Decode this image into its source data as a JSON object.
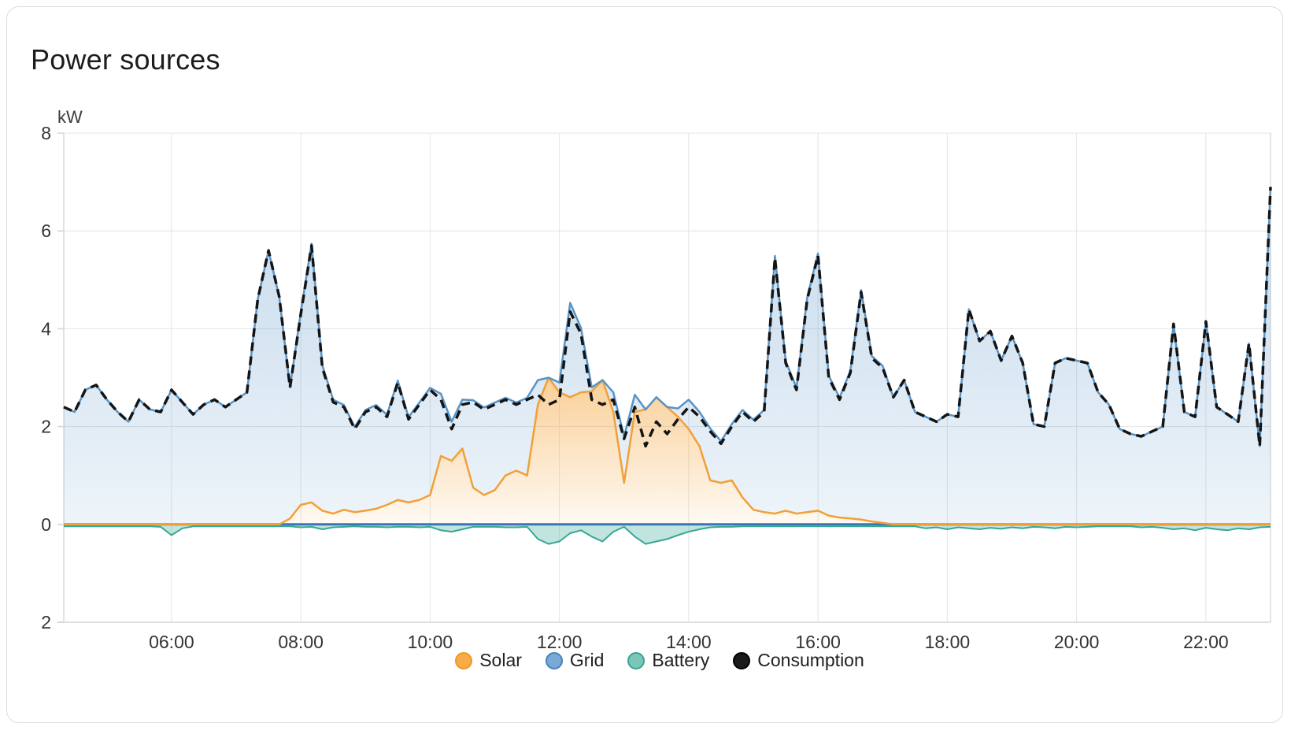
{
  "card": {
    "title": "Power sources"
  },
  "chart_data": {
    "type": "area",
    "title": "Power sources",
    "unit": "kW",
    "grid": true,
    "legend_position": "bottom",
    "x_axis": {
      "start_minute": 260,
      "step_minutes": 10,
      "count": 113,
      "range_hours": [
        4.3333,
        23.0
      ],
      "ticks": [
        {
          "hour": 6,
          "label": "06:00"
        },
        {
          "hour": 8,
          "label": "08:00"
        },
        {
          "hour": 10,
          "label": "10:00"
        },
        {
          "hour": 12,
          "label": "12:00"
        },
        {
          "hour": 14,
          "label": "14:00"
        },
        {
          "hour": 16,
          "label": "16:00"
        },
        {
          "hour": 18,
          "label": "18:00"
        },
        {
          "hour": 20,
          "label": "20:00"
        },
        {
          "hour": 22,
          "label": "22:00"
        }
      ]
    },
    "y_axis": {
      "min": -2,
      "max": 8,
      "label": "kW",
      "ticks": [
        {
          "value": 8,
          "label": "8"
        },
        {
          "value": 6,
          "label": "6"
        },
        {
          "value": 4,
          "label": "4"
        },
        {
          "value": 2,
          "label": "2"
        },
        {
          "value": 0,
          "label": "0"
        },
        {
          "value": -2,
          "label": "2"
        }
      ]
    },
    "zero_line_color": "#3a76b5",
    "grid_color": "#e4e4e4",
    "axis_color": "#d6d6d6",
    "tick_text_color": "#333333",
    "series": [
      {
        "name": "Solar",
        "role": "solar",
        "line_color": "#f1a038",
        "line_width": 2.5,
        "area_top": "rgba(243,160,48,0.50)",
        "area_bottom": "rgba(243,160,48,0.06)",
        "marker_fill": "#fbab45",
        "marker_stroke": "#ec9a22",
        "values": [
          0,
          0,
          0,
          0,
          0,
          0,
          0,
          0,
          0,
          0,
          0,
          0,
          0,
          0,
          0,
          0,
          0,
          0,
          0,
          0,
          0,
          0.12,
          0.4,
          0.45,
          0.28,
          0.22,
          0.3,
          0.25,
          0.28,
          0.32,
          0.4,
          0.5,
          0.45,
          0.5,
          0.6,
          1.4,
          1.3,
          1.55,
          0.75,
          0.6,
          0.7,
          1.0,
          1.1,
          1.0,
          2.45,
          3.0,
          2.7,
          2.6,
          2.7,
          2.72,
          2.95,
          2.3,
          0.85,
          2.3,
          2.35,
          2.6,
          2.4,
          2.2,
          1.95,
          1.6,
          0.9,
          0.85,
          0.9,
          0.55,
          0.3,
          0.25,
          0.22,
          0.28,
          0.22,
          0.25,
          0.28,
          0.18,
          0.14,
          0.12,
          0.1,
          0.06,
          0.03,
          0,
          0,
          0,
          0,
          0,
          0,
          0,
          0,
          0,
          0,
          0,
          0,
          0,
          0,
          0,
          0,
          0,
          0,
          0,
          0,
          0,
          0,
          0,
          0,
          0,
          0,
          0,
          0,
          0,
          0,
          0,
          0,
          0,
          0,
          0,
          0
        ]
      },
      {
        "name": "Grid",
        "role": "grid",
        "line_color": "#5894c8",
        "line_width": 2.5,
        "area_top": "rgba(88,148,200,0.35)",
        "area_bottom": "rgba(88,148,200,0.10)",
        "marker_fill": "#79a9d6",
        "marker_stroke": "#4a82b8",
        "values": [
          2.4,
          2.3,
          2.75,
          2.85,
          2.55,
          2.3,
          2.1,
          2.55,
          2.35,
          2.3,
          2.75,
          2.5,
          2.25,
          2.45,
          2.55,
          2.4,
          2.55,
          2.7,
          4.6,
          5.6,
          4.65,
          2.68,
          3.94,
          5.29,
          2.97,
          2.33,
          2.14,
          1.74,
          2.06,
          2.12,
          1.84,
          2.44,
          1.74,
          1.99,
          2.19,
          1.27,
          0.8,
          1.0,
          1.79,
          1.79,
          1.79,
          1.59,
          1.39,
          1.59,
          0.5,
          0.0,
          0.2,
          1.93,
          1.32,
          0.08,
          0.0,
          0.4,
          0.95,
          0.35,
          0.0,
          0.0,
          0.0,
          0.17,
          0.6,
          0.7,
          1.06,
          0.85,
          1.15,
          1.79,
          1.84,
          2.09,
          5.27,
          3.06,
          2.57,
          4.39,
          5.26,
          2.86,
          2.45,
          3.02,
          4.69,
          3.38,
          3.21,
          2.6,
          2.95,
          2.3,
          2.2,
          2.1,
          2.25,
          2.2,
          4.4,
          3.75,
          3.95,
          3.35,
          3.85,
          3.3,
          2.05,
          2.0,
          3.3,
          3.4,
          3.35,
          3.3,
          2.7,
          2.45,
          1.95,
          1.85,
          1.8,
          1.9,
          2.0,
          4.1,
          2.3,
          2.2,
          4.15,
          2.4,
          2.25,
          2.1,
          3.7,
          1.6,
          6.9
        ]
      },
      {
        "name": "Battery",
        "role": "battery",
        "line_color": "#36a795",
        "line_width": 2,
        "area_top": "rgba(64,170,152,0.32)",
        "area_bottom": "rgba(64,170,152,0.32)",
        "marker_fill": "#79c7b9",
        "marker_stroke": "#3fa18f",
        "values": [
          -0.04,
          -0.04,
          -0.04,
          -0.04,
          -0.04,
          -0.04,
          -0.04,
          -0.04,
          -0.04,
          -0.05,
          -0.22,
          -0.08,
          -0.04,
          -0.04,
          -0.04,
          -0.04,
          -0.04,
          -0.04,
          -0.04,
          -0.04,
          -0.04,
          -0.04,
          -0.06,
          -0.05,
          -0.1,
          -0.06,
          -0.05,
          -0.04,
          -0.05,
          -0.05,
          -0.06,
          -0.05,
          -0.05,
          -0.06,
          -0.05,
          -0.12,
          -0.15,
          -0.1,
          -0.05,
          -0.05,
          -0.05,
          -0.06,
          -0.06,
          -0.05,
          -0.3,
          -0.4,
          -0.35,
          -0.18,
          -0.12,
          -0.25,
          -0.35,
          -0.15,
          -0.05,
          -0.25,
          -0.4,
          -0.35,
          -0.3,
          -0.22,
          -0.15,
          -0.1,
          -0.06,
          -0.05,
          -0.05,
          -0.04,
          -0.04,
          -0.04,
          -0.04,
          -0.04,
          -0.04,
          -0.04,
          -0.04,
          -0.04,
          -0.04,
          -0.04,
          -0.04,
          -0.04,
          -0.04,
          -0.04,
          -0.04,
          -0.04,
          -0.08,
          -0.06,
          -0.1,
          -0.06,
          -0.08,
          -0.1,
          -0.07,
          -0.09,
          -0.06,
          -0.08,
          -0.05,
          -0.06,
          -0.08,
          -0.05,
          -0.06,
          -0.05,
          -0.04,
          -0.04,
          -0.04,
          -0.04,
          -0.06,
          -0.05,
          -0.07,
          -0.1,
          -0.08,
          -0.12,
          -0.07,
          -0.1,
          -0.12,
          -0.08,
          -0.1,
          -0.06,
          -0.05
        ]
      },
      {
        "name": "Consumption",
        "role": "consumption",
        "line_color": "#141414",
        "line_width": 3.5,
        "dash": [
          11,
          7
        ],
        "marker_fill": "#1a1a1a",
        "marker_stroke": "#000000",
        "values": [
          2.4,
          2.3,
          2.75,
          2.85,
          2.55,
          2.3,
          2.1,
          2.55,
          2.35,
          2.3,
          2.75,
          2.5,
          2.25,
          2.45,
          2.55,
          2.4,
          2.55,
          2.7,
          4.6,
          5.6,
          4.65,
          2.8,
          4.3,
          5.7,
          3.2,
          2.5,
          2.4,
          1.95,
          2.3,
          2.4,
          2.2,
          2.9,
          2.15,
          2.45,
          2.75,
          2.55,
          1.95,
          2.45,
          2.5,
          2.35,
          2.45,
          2.55,
          2.45,
          2.55,
          2.65,
          2.45,
          2.55,
          4.35,
          3.9,
          2.55,
          2.45,
          2.55,
          1.75,
          2.4,
          1.6,
          2.1,
          1.85,
          2.15,
          2.4,
          2.2,
          1.9,
          1.65,
          2.0,
          2.3,
          2.1,
          2.3,
          5.45,
          3.3,
          2.75,
          4.6,
          5.5,
          3.0,
          2.55,
          3.1,
          4.75,
          3.4,
          3.2,
          2.6,
          2.95,
          2.3,
          2.2,
          2.1,
          2.25,
          2.2,
          4.4,
          3.75,
          3.95,
          3.35,
          3.85,
          3.3,
          2.05,
          2.0,
          3.3,
          3.4,
          3.35,
          3.3,
          2.7,
          2.45,
          1.95,
          1.85,
          1.8,
          1.9,
          2.0,
          4.1,
          2.3,
          2.2,
          4.15,
          2.4,
          2.25,
          2.1,
          3.7,
          1.6,
          6.9
        ]
      }
    ]
  }
}
